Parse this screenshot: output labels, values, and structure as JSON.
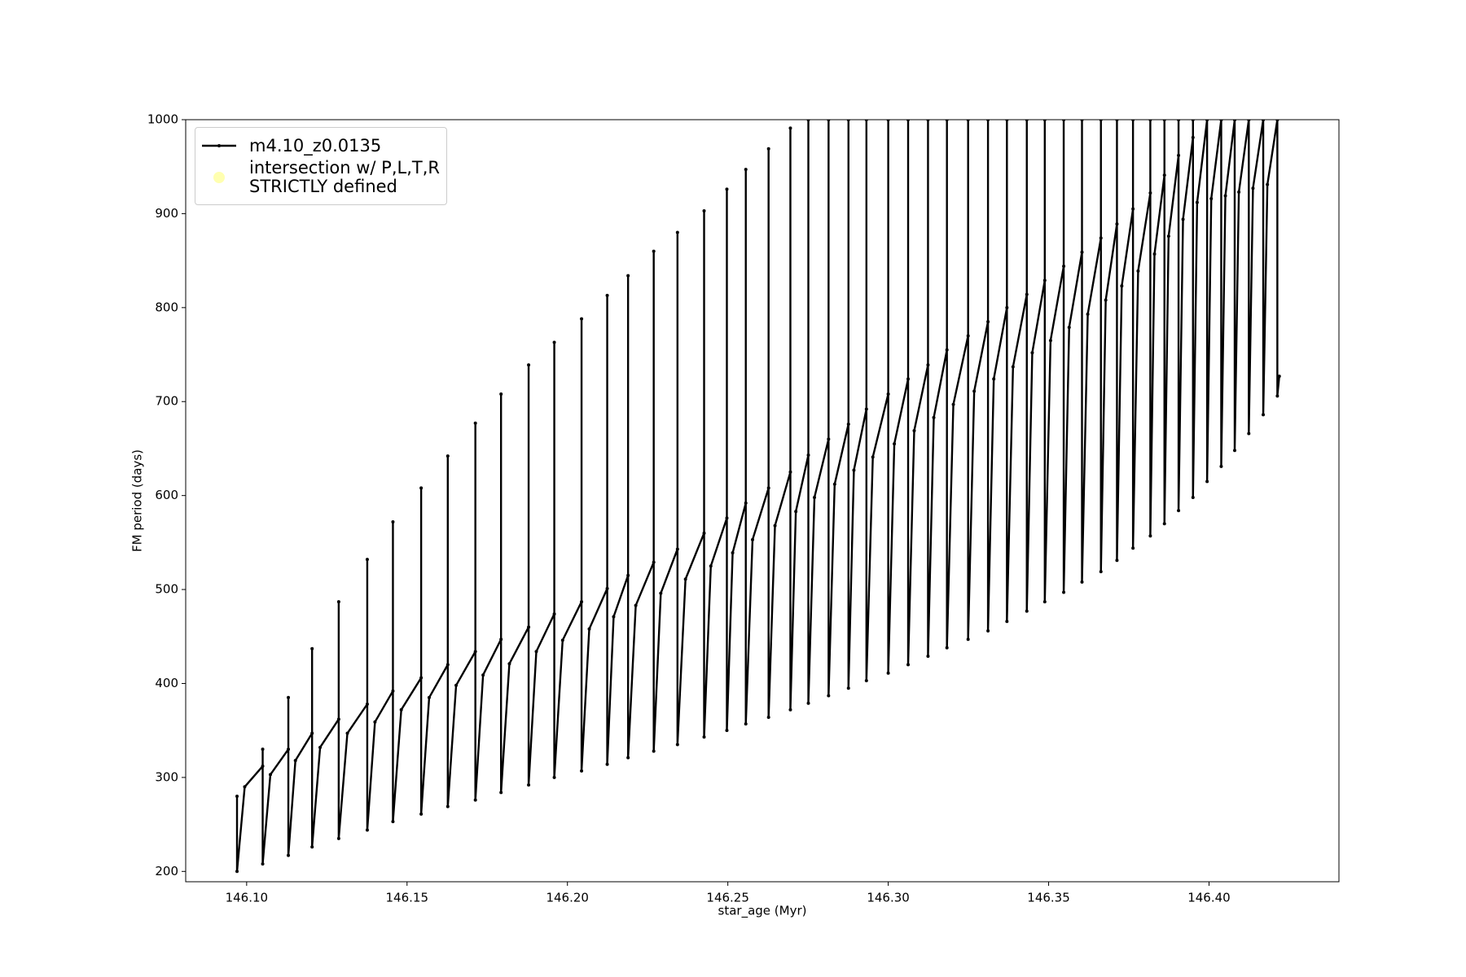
{
  "chart_data": {
    "type": "line",
    "xlabel": "star_age (Myr)",
    "ylabel": "FM period (days)",
    "xlim": [
      146.081,
      146.4405
    ],
    "ylim": [
      189,
      1000
    ],
    "xticks": [
      {
        "value": 146.1,
        "label": "146.10"
      },
      {
        "value": 146.15,
        "label": "146.15"
      },
      {
        "value": 146.2,
        "label": "146.20"
      },
      {
        "value": 146.25,
        "label": "146.25"
      },
      {
        "value": 146.3,
        "label": "146.30"
      },
      {
        "value": 146.35,
        "label": "146.35"
      },
      {
        "value": 146.4,
        "label": "146.40"
      }
    ],
    "yticks": [
      200,
      300,
      400,
      500,
      600,
      700,
      800,
      900,
      1000
    ],
    "grid": false,
    "legend": "upper left",
    "series": [
      {
        "name": "m4.10_z0.0135",
        "color": "#000000",
        "marker": true,
        "x": [
          146.097,
          146.097,
          146.0994,
          146.105,
          146.105,
          146.105,
          146.1074,
          146.113,
          146.113,
          146.113,
          146.1152,
          146.1204,
          146.1204,
          146.1204,
          146.1229,
          146.1287,
          146.1287,
          146.1287,
          146.1314,
          146.1376,
          146.1376,
          146.1376,
          146.14,
          146.1456,
          146.1456,
          146.1456,
          146.1482,
          146.1544,
          146.1544,
          146.1544,
          146.1569,
          146.1627,
          146.1627,
          146.1627,
          146.1653,
          146.1713,
          146.1713,
          146.1713,
          146.1737,
          146.1793,
          146.1793,
          146.1793,
          146.1819,
          146.1879,
          146.1879,
          146.1879,
          146.1903,
          146.1959,
          146.1959,
          146.1959,
          146.1985,
          146.2044,
          146.2044,
          146.2044,
          146.2068,
          146.2124,
          146.2124,
          146.2124,
          146.2144,
          146.2189,
          146.2189,
          146.2189,
          146.2213,
          146.2269,
          146.2269,
          146.2269,
          146.2291,
          146.2343,
          146.2343,
          146.2343,
          146.2368,
          146.2426,
          146.2426,
          146.2426,
          146.2447,
          146.2497,
          146.2497,
          146.2497,
          146.2515,
          146.2556,
          146.2556,
          146.2556,
          146.2577,
          146.2627,
          146.2627,
          146.2627,
          146.2647,
          146.2695,
          146.2695,
          146.2695,
          146.2712,
          146.2751,
          146.2751,
          146.2751,
          146.277,
          146.2814,
          146.2814,
          146.2814,
          146.2833,
          146.2876,
          146.2876,
          146.2876,
          146.2893,
          146.2932,
          146.2932,
          146.2932,
          146.2952,
          146.3,
          146.3,
          146.3,
          146.3019,
          146.3062,
          146.3062,
          146.3062,
          146.3081,
          146.3124,
          146.3124,
          146.3124,
          146.3142,
          146.3183,
          146.3183,
          146.3183,
          146.3203,
          146.3249,
          146.3249,
          146.3249,
          146.3268,
          146.3311,
          146.3311,
          146.3311,
          146.3329,
          146.337,
          146.337,
          146.337,
          146.3389,
          146.3432,
          146.3432,
          146.3432,
          146.3449,
          146.3488,
          146.3488,
          146.3488,
          146.3506,
          146.3547,
          146.3547,
          146.3547,
          146.3564,
          146.3604,
          146.3604,
          146.3604,
          146.3622,
          146.3663,
          146.3663,
          146.3663,
          146.3678,
          146.3713,
          146.3713,
          146.3713,
          146.3728,
          146.3763,
          146.3763,
          146.3763,
          146.3779,
          146.3817,
          146.3817,
          146.3817,
          146.383,
          146.3861,
          146.3861,
          146.3861,
          146.3874,
          146.3905,
          146.3905,
          146.3905,
          146.3919,
          146.395,
          146.395,
          146.395,
          146.3963,
          146.3994,
          146.3994,
          146.3994,
          146.4007,
          146.4038,
          146.4038,
          146.4038,
          146.4051,
          146.408,
          146.408,
          146.408,
          146.4093,
          146.4124,
          146.4124,
          146.4124,
          146.4137,
          146.4169,
          146.4169,
          146.4169,
          146.4182,
          146.4213,
          146.4213,
          146.4213,
          146.4219
        ],
        "values": [
          280,
          200,
          290,
          312,
          330,
          208,
          303,
          330,
          385,
          217,
          318,
          347,
          437,
          226,
          332,
          362,
          487,
          235,
          347,
          378,
          532,
          244,
          359,
          392,
          572,
          253,
          372,
          406,
          608,
          261,
          385,
          420,
          642,
          269,
          398,
          434,
          677,
          276,
          409,
          447,
          708,
          284,
          421,
          460,
          739,
          292,
          434,
          474,
          763,
          300,
          446,
          487,
          788,
          307,
          458,
          501,
          813,
          314,
          471,
          515,
          834,
          321,
          483,
          529,
          860,
          328,
          496,
          543,
          880,
          335,
          511,
          560,
          903,
          343,
          525,
          576,
          926,
          350,
          539,
          592,
          947,
          357,
          553,
          608,
          969,
          364,
          568,
          625,
          991,
          372,
          583,
          643,
          1000,
          379,
          598,
          660,
          1000,
          387,
          612,
          676,
          1000,
          395,
          627,
          692,
          1000,
          403,
          641,
          708,
          1000,
          411,
          655,
          724,
          1000,
          420,
          669,
          739,
          1000,
          429,
          683,
          755,
          1000,
          438,
          697,
          770,
          1000,
          447,
          711,
          785,
          1000,
          456,
          724,
          800,
          1000,
          466,
          737,
          814,
          1000,
          477,
          752,
          829,
          1000,
          487,
          765,
          844,
          1000,
          497,
          779,
          859,
          1000,
          508,
          793,
          874,
          1000,
          519,
          808,
          889,
          1000,
          531,
          823,
          905,
          1000,
          544,
          839,
          922,
          1000,
          557,
          857,
          941,
          1000,
          570,
          876,
          962,
          1000,
          584,
          894,
          981,
          1000,
          598,
          912,
          1000,
          1000,
          615,
          916,
          1000,
          1000,
          631,
          919,
          1000,
          1000,
          648,
          923,
          1000,
          1000,
          666,
          927,
          1000,
          1000,
          686,
          931,
          1000,
          1000,
          706,
          727
        ]
      },
      {
        "name": "intersection w/ P,L,T,R\nSTRICTLY defined",
        "color": "#ffffb0",
        "type": "scatter",
        "x": [],
        "values": []
      }
    ]
  }
}
